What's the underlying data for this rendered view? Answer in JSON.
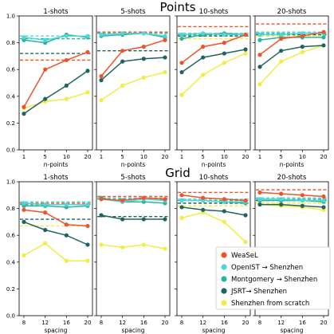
{
  "colors": {
    "WeaSeL": "#f0522b",
    "OpenIST": "#4fd6d8",
    "Montgomery": "#2ab59b",
    "JSRT": "#1f6460",
    "Scratch": "#f4ec46"
  },
  "legend": {
    "placement": "bottom-right",
    "entries": [
      {
        "key": "WeaSeL",
        "label": "WeaSeL"
      },
      {
        "key": "OpenIST",
        "label": "OpenIST → Shenzhen"
      },
      {
        "key": "Montgomery",
        "label": "Montgomery → Shenzhen"
      },
      {
        "key": "JSRT",
        "label": "JSRT→ Shenzhen"
      },
      {
        "key": "Scratch",
        "label": "Shenzhen from scratch"
      }
    ]
  },
  "chart_data": [
    {
      "type": "line",
      "title": "Points",
      "xlabel": "n-points",
      "x_ticks": [
        "1",
        "5",
        "10",
        "20"
      ],
      "ylim": [
        0.0,
        1.0
      ],
      "y_ticks": [
        "0.0",
        "0.2",
        "0.4",
        "0.6",
        "0.8",
        "1.0"
      ],
      "grid": false,
      "panels": [
        {
          "title": "1-shots",
          "series": [
            {
              "key": "WeaSeL",
              "values": [
                0.32,
                0.6,
                0.67,
                0.73
              ],
              "baseline": 0.67
            },
            {
              "key": "OpenIST",
              "values": [
                0.84,
                0.82,
                0.85,
                0.85
              ],
              "baseline": 0.85
            },
            {
              "key": "Montgomery",
              "values": [
                0.82,
                0.8,
                0.86,
                0.84
              ],
              "baseline": 0.83
            },
            {
              "key": "JSRT",
              "values": [
                0.27,
                0.38,
                0.48,
                0.59
              ],
              "baseline": 0.72
            },
            {
              "key": "Scratch",
              "values": [
                0.31,
                0.36,
                0.38,
                0.43
              ],
              "baseline": 0.67
            }
          ]
        },
        {
          "title": "5-shots",
          "series": [
            {
              "key": "WeaSeL",
              "values": [
                0.55,
                0.74,
                0.77,
                0.82
              ],
              "baseline": 0.88
            },
            {
              "key": "OpenIST",
              "values": [
                0.86,
                0.87,
                0.87,
                0.85
              ],
              "baseline": 0.88
            },
            {
              "key": "Montgomery",
              "values": [
                0.85,
                0.86,
                0.87,
                0.84
              ],
              "baseline": 0.87
            },
            {
              "key": "JSRT",
              "values": [
                0.52,
                0.66,
                0.68,
                0.69
              ],
              "baseline": 0.74
            },
            {
              "key": "Scratch",
              "values": [
                0.37,
                0.48,
                0.54,
                0.58
              ],
              "baseline": 0.74
            }
          ]
        },
        {
          "title": "10-shots",
          "series": [
            {
              "key": "WeaSeL",
              "values": [
                0.65,
                0.77,
                0.8,
                0.86
              ],
              "baseline": 0.92
            },
            {
              "key": "OpenIST",
              "values": [
                0.86,
                0.87,
                0.86,
                0.86
              ],
              "baseline": 0.87
            },
            {
              "key": "Montgomery",
              "values": [
                0.83,
                0.86,
                0.87,
                0.86
              ],
              "baseline": 0.86
            },
            {
              "key": "JSRT",
              "values": [
                0.58,
                0.69,
                0.72,
                0.75
              ],
              "baseline": 0.85
            },
            {
              "key": "Scratch",
              "values": [
                0.41,
                0.56,
                0.65,
                0.72
              ],
              "baseline": 0.83
            }
          ]
        },
        {
          "title": "20-shots",
          "series": [
            {
              "key": "WeaSeL",
              "values": [
                0.71,
                0.83,
                0.85,
                0.88
              ],
              "baseline": 0.94
            },
            {
              "key": "OpenIST",
              "values": [
                0.86,
                0.86,
                0.87,
                0.87
              ],
              "baseline": 0.88
            },
            {
              "key": "Montgomery",
              "values": [
                0.82,
                0.84,
                0.84,
                0.84
              ],
              "baseline": 0.87
            },
            {
              "key": "JSRT",
              "values": [
                0.62,
                0.74,
                0.77,
                0.78
              ],
              "baseline": 0.86
            },
            {
              "key": "Scratch",
              "values": [
                0.49,
                0.66,
                0.73,
                0.78
              ],
              "baseline": 0.85
            }
          ]
        }
      ]
    },
    {
      "type": "line",
      "title": "Grid",
      "xlabel": "spacing",
      "x_ticks": [
        "8",
        "12",
        "16",
        "20"
      ],
      "ylim": [
        0.0,
        1.0
      ],
      "y_ticks": [
        "0.0",
        "0.2",
        "0.4",
        "0.6",
        "0.8",
        "1.0"
      ],
      "grid": false,
      "panels": [
        {
          "title": "1-shots",
          "series": [
            {
              "key": "WeaSeL",
              "values": [
                0.79,
                0.77,
                0.68,
                0.67
              ],
              "baseline": 0.84
            },
            {
              "key": "OpenIST",
              "values": [
                0.84,
                0.83,
                0.83,
                0.83
              ],
              "baseline": 0.85
            },
            {
              "key": "Montgomery",
              "values": [
                0.82,
                0.82,
                0.81,
                0.82
              ],
              "baseline": 0.83
            },
            {
              "key": "JSRT",
              "values": [
                0.7,
                0.64,
                0.6,
                0.53
              ],
              "baseline": 0.72
            },
            {
              "key": "Scratch",
              "values": [
                0.45,
                0.54,
                0.41,
                0.41
              ],
              "baseline": 0.67
            }
          ]
        },
        {
          "title": "5-shots",
          "series": [
            {
              "key": "WeaSeL",
              "values": [
                0.87,
                0.86,
                0.88,
                0.87
              ],
              "baseline": 0.89
            },
            {
              "key": "OpenIST",
              "values": [
                0.87,
                0.85,
                0.87,
                0.86
              ],
              "baseline": 0.88
            },
            {
              "key": "Montgomery",
              "values": [
                0.88,
                0.85,
                0.85,
                0.84
              ],
              "baseline": 0.87
            },
            {
              "key": "JSRT",
              "values": [
                0.75,
                0.72,
                0.72,
                0.72
              ],
              "baseline": 0.74
            },
            {
              "key": "Scratch",
              "values": [
                0.53,
                0.51,
                0.53,
                0.5
              ],
              "baseline": 0.74
            }
          ]
        },
        {
          "title": "10-shots",
          "series": [
            {
              "key": "WeaSeL",
              "values": [
                0.9,
                0.88,
                0.87,
                0.86
              ],
              "baseline": 0.92
            },
            {
              "key": "OpenIST",
              "values": [
                0.86,
                0.86,
                0.85,
                0.85
              ],
              "baseline": 0.87
            },
            {
              "key": "Montgomery",
              "values": [
                0.86,
                0.86,
                0.85,
                0.84
              ],
              "baseline": 0.86
            },
            {
              "key": "JSRT",
              "values": [
                0.81,
                0.79,
                0.78,
                0.75
              ],
              "baseline": 0.84
            },
            {
              "key": "Scratch",
              "values": [
                0.73,
                0.77,
                0.7,
                0.55
              ],
              "baseline": 0.82
            }
          ]
        },
        {
          "title": "20-shots",
          "series": [
            {
              "key": "WeaSeL",
              "values": [
                0.92,
                0.91,
                0.9,
                0.89
              ],
              "baseline": 0.94
            },
            {
              "key": "OpenIST",
              "values": [
                0.87,
                0.87,
                0.86,
                0.86
              ],
              "baseline": 0.88
            },
            {
              "key": "Montgomery",
              "values": [
                0.86,
                0.86,
                0.86,
                0.85
              ],
              "baseline": 0.87
            },
            {
              "key": "JSRT",
              "values": [
                0.83,
                0.83,
                0.82,
                0.81
              ],
              "baseline": 0.86
            },
            {
              "key": "Scratch",
              "values": [
                0.83,
                0.82,
                0.81,
                0.79
              ],
              "baseline": 0.84
            }
          ]
        }
      ]
    }
  ]
}
